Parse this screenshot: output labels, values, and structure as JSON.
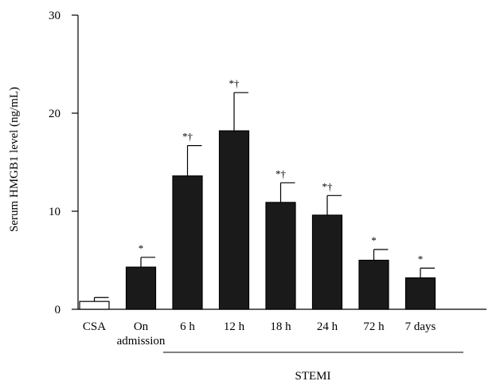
{
  "chart_data": {
    "type": "bar",
    "title": "",
    "ylabel": "Serum HMGB1 level (ng/mL)",
    "xlabel": "",
    "ylim": [
      0,
      30
    ],
    "yticks": [
      "0",
      "10",
      "20",
      "30"
    ],
    "group_label": "STEMI",
    "bars": [
      {
        "label": "CSA",
        "label_lines": [
          "CSA"
        ],
        "value": 0.8,
        "error": 0.4,
        "annotation": "",
        "fill": "#ffffff"
      },
      {
        "label": "On admission",
        "label_lines": [
          "On",
          "admission"
        ],
        "value": 4.3,
        "error": 1.0,
        "annotation": "*",
        "fill": "#1a1a1a"
      },
      {
        "label": "6 h",
        "label_lines": [
          "6 h"
        ],
        "value": 13.6,
        "error": 3.1,
        "annotation": "*†",
        "fill": "#1a1a1a"
      },
      {
        "label": "12 h",
        "label_lines": [
          "12 h"
        ],
        "value": 18.2,
        "error": 3.9,
        "annotation": "*†",
        "fill": "#1a1a1a"
      },
      {
        "label": "18 h",
        "label_lines": [
          "18 h"
        ],
        "value": 10.9,
        "error": 2.0,
        "annotation": "*†",
        "fill": "#1a1a1a"
      },
      {
        "label": "24 h",
        "label_lines": [
          "24 h"
        ],
        "value": 9.6,
        "error": 2.0,
        "annotation": "*†",
        "fill": "#1a1a1a"
      },
      {
        "label": "72 h",
        "label_lines": [
          "72 h"
        ],
        "value": 5.0,
        "error": 1.1,
        "annotation": "*",
        "fill": "#1a1a1a"
      },
      {
        "label": "7 days",
        "label_lines": [
          "7 days"
        ],
        "value": 3.2,
        "error": 1.0,
        "annotation": "*",
        "fill": "#1a1a1a"
      }
    ]
  }
}
